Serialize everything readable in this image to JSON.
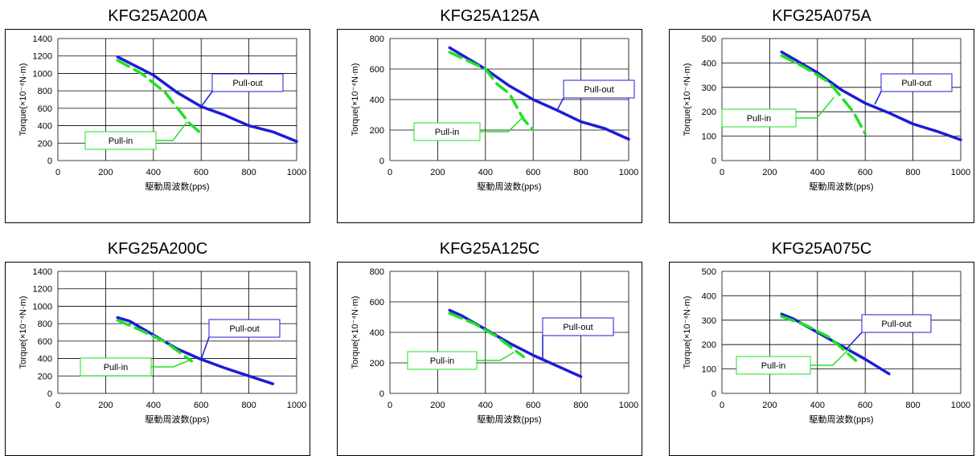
{
  "colors": {
    "pull_out": "#1c1cd8",
    "pull_in": "#22e022",
    "frame": "#000000",
    "grid": "#000000"
  },
  "chart_data": [
    {
      "type": "line",
      "title": "KFG25A200A",
      "xlabel": "駆動周波数(pps)",
      "ylabel": "Torque(×10⁻⁴N·m)",
      "xlim": [
        0,
        1000
      ],
      "ylim": [
        0,
        1400
      ],
      "xticks": [
        0,
        200,
        400,
        600,
        800,
        1000
      ],
      "yticks": [
        0,
        200,
        400,
        600,
        800,
        1000,
        1200,
        1400
      ],
      "series": [
        {
          "name": "Pull-out",
          "x": [
            250,
            400,
            500,
            600,
            700,
            800,
            900,
            1000
          ],
          "y": [
            1190,
            980,
            780,
            620,
            520,
            400,
            330,
            220
          ]
        },
        {
          "name": "Pull-in",
          "x": [
            250,
            350,
            450,
            550,
            600
          ],
          "y": [
            1150,
            1000,
            780,
            430,
            310
          ]
        }
      ]
    },
    {
      "type": "line",
      "title": "KFG25A125A",
      "xlabel": "駆動周波数(pps)",
      "ylabel": "Torque(×10⁻⁴N·m)",
      "xlim": [
        0,
        1000
      ],
      "ylim": [
        0,
        800
      ],
      "xticks": [
        0,
        200,
        400,
        600,
        800,
        1000
      ],
      "yticks": [
        0,
        200,
        400,
        600,
        800
      ],
      "series": [
        {
          "name": "Pull-out",
          "x": [
            250,
            400,
            500,
            600,
            700,
            800,
            900,
            1000
          ],
          "y": [
            740,
            600,
            490,
            400,
            330,
            255,
            210,
            140
          ]
        },
        {
          "name": "Pull-in",
          "x": [
            250,
            400,
            450,
            500,
            560,
            600
          ],
          "y": [
            710,
            600,
            500,
            440,
            270,
            200
          ]
        }
      ]
    },
    {
      "type": "line",
      "title": "KFG25A075A",
      "xlabel": "駆動周波数(pps)",
      "ylabel": "Torque(×10⁻⁴N·m)",
      "xlim": [
        0,
        1000
      ],
      "ylim": [
        0,
        500
      ],
      "xticks": [
        0,
        200,
        400,
        600,
        800,
        1000
      ],
      "yticks": [
        0,
        100,
        200,
        300,
        400,
        500
      ],
      "series": [
        {
          "name": "Pull-out",
          "x": [
            250,
            400,
            500,
            600,
            700,
            800,
            900,
            1000
          ],
          "y": [
            445,
            360,
            290,
            235,
            195,
            150,
            120,
            85
          ]
        },
        {
          "name": "Pull-in",
          "x": [
            250,
            350,
            450,
            550,
            600
          ],
          "y": [
            430,
            380,
            320,
            200,
            110
          ]
        }
      ]
    },
    {
      "type": "line",
      "title": "KFG25A200C",
      "xlabel": "駆動周波数(pps)",
      "ylabel": "Torque(×10⁻⁴N·m)",
      "xlim": [
        0,
        1000
      ],
      "ylim": [
        0,
        1400
      ],
      "xticks": [
        0,
        200,
        400,
        600,
        800,
        1000
      ],
      "yticks": [
        0,
        200,
        400,
        600,
        800,
        1000,
        1200,
        1400
      ],
      "series": [
        {
          "name": "Pull-out",
          "x": [
            250,
            300,
            400,
            500,
            600,
            700,
            800,
            900
          ],
          "y": [
            870,
            830,
            670,
            510,
            390,
            290,
            200,
            110
          ]
        },
        {
          "name": "Pull-in",
          "x": [
            250,
            350,
            450,
            560
          ],
          "y": [
            840,
            720,
            590,
            370
          ]
        }
      ]
    },
    {
      "type": "line",
      "title": "KFG25A125C",
      "xlabel": "駆動周波数(pps)",
      "ylabel": "Torque(×10⁻⁴N·m)",
      "xlim": [
        0,
        1000
      ],
      "ylim": [
        0,
        800
      ],
      "xticks": [
        0,
        200,
        400,
        600,
        800,
        1000
      ],
      "yticks": [
        0,
        200,
        400,
        600,
        800
      ],
      "series": [
        {
          "name": "Pull-out",
          "x": [
            250,
            300,
            400,
            500,
            600,
            700,
            800
          ],
          "y": [
            545,
            510,
            420,
            330,
            250,
            180,
            110
          ]
        },
        {
          "name": "Pull-in",
          "x": [
            250,
            350,
            450,
            560
          ],
          "y": [
            525,
            460,
            370,
            240
          ]
        }
      ]
    },
    {
      "type": "line",
      "title": "KFG25A075C",
      "xlabel": "駆動周波数(pps)",
      "ylabel": "Torque(×10⁻⁴N·m)",
      "xlim": [
        0,
        1000
      ],
      "ylim": [
        0,
        500
      ],
      "xticks": [
        0,
        200,
        400,
        600,
        800,
        1000
      ],
      "yticks": [
        0,
        100,
        200,
        300,
        400,
        500
      ],
      "series": [
        {
          "name": "Pull-out",
          "x": [
            250,
            300,
            400,
            500,
            600,
            700
          ],
          "y": [
            325,
            305,
            250,
            195,
            140,
            80
          ]
        },
        {
          "name": "Pull-in",
          "x": [
            250,
            350,
            450,
            560
          ],
          "y": [
            315,
            280,
            230,
            135
          ]
        }
      ]
    }
  ]
}
